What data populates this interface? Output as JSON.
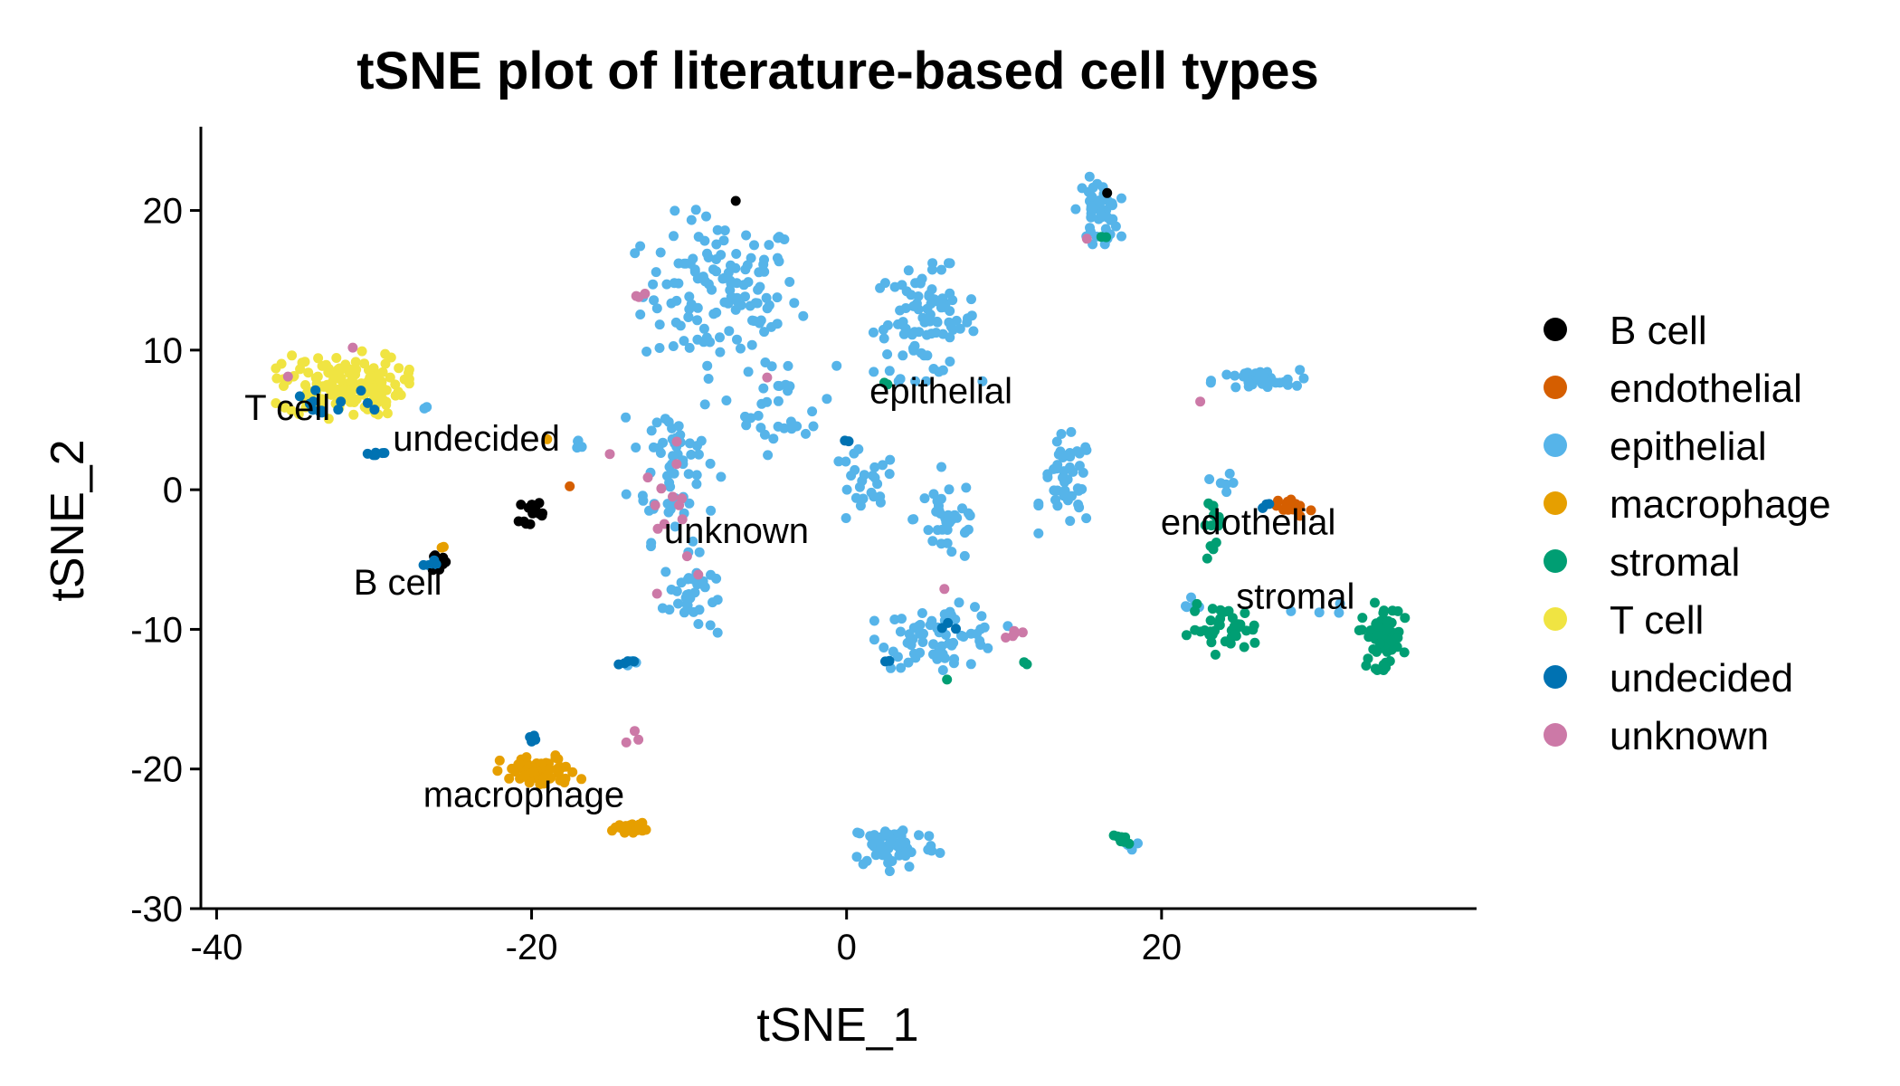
{
  "chart_data": {
    "type": "scatter",
    "title": "tSNE plot of literature-based cell types",
    "xlabel": "tSNE_1",
    "ylabel": "tSNE_2",
    "xlim": [
      -41,
      40
    ],
    "ylim": [
      -30,
      26
    ],
    "x_ticks": [
      -40,
      -20,
      0,
      20
    ],
    "y_ticks": [
      20,
      10,
      0,
      -10,
      -20,
      -30
    ],
    "grid": false,
    "legend_position": "right",
    "legend": [
      {
        "name": "B cell",
        "color": "#000000"
      },
      {
        "name": "endothelial",
        "color": "#D55E00"
      },
      {
        "name": "epithelial",
        "color": "#56B4E9"
      },
      {
        "name": "macrophage",
        "color": "#E69F00"
      },
      {
        "name": "stromal",
        "color": "#009E73"
      },
      {
        "name": "T cell",
        "color": "#F0E442"
      },
      {
        "name": "undecided",
        "color": "#0072B2"
      },
      {
        "name": "unknown",
        "color": "#CC79A7"
      }
    ],
    "cluster_labels": [
      {
        "text": "T cell",
        "x": -35.5,
        "y": 5.0
      },
      {
        "text": "undecided",
        "x": -23.5,
        "y": 2.8
      },
      {
        "text": "B cell",
        "x": -28.5,
        "y": -7.5
      },
      {
        "text": "unknown",
        "x": -7.0,
        "y": -3.8
      },
      {
        "text": "epithelial",
        "x": 6.0,
        "y": 6.2
      },
      {
        "text": "endothelial",
        "x": 25.5,
        "y": -3.2
      },
      {
        "text": "stromal",
        "x": 28.5,
        "y": -8.5
      },
      {
        "text": "macrophage",
        "x": -20.5,
        "y": -22.7
      }
    ],
    "clusters": [
      {
        "label": "B cell",
        "center": [
          -20,
          -1.5
        ],
        "spread": [
          0.7,
          0.8
        ],
        "n": 16
      },
      {
        "label": "B cell",
        "center": [
          -26,
          -5.3
        ],
        "spread": [
          0.6,
          0.5
        ],
        "n": 14
      },
      {
        "label": "B cell",
        "center": [
          -7,
          20.7
        ],
        "spread": [
          0.1,
          0.1
        ],
        "n": 1
      },
      {
        "label": "B cell",
        "center": [
          16.5,
          21.3
        ],
        "spread": [
          0.1,
          0.1
        ],
        "n": 1
      },
      {
        "label": "endothelial",
        "center": [
          28.5,
          -1.2
        ],
        "spread": [
          1.0,
          0.6
        ],
        "n": 16
      },
      {
        "label": "endothelial",
        "center": [
          -17.7,
          0.3
        ],
        "spread": [
          0.1,
          0.1
        ],
        "n": 1
      },
      {
        "label": "T cell",
        "center": [
          -32,
          7.5
        ],
        "spread": [
          3.5,
          2.0
        ],
        "n": 150
      },
      {
        "label": "undecided",
        "center": [
          -33,
          6.0
        ],
        "spread": [
          2.5,
          1.5
        ],
        "n": 14
      },
      {
        "label": "undecided",
        "center": [
          -30,
          2.6
        ],
        "spread": [
          0.8,
          0.1
        ],
        "n": 6
      },
      {
        "label": "undecided",
        "center": [
          -26.5,
          -5.3
        ],
        "spread": [
          0.5,
          0.3
        ],
        "n": 4
      },
      {
        "label": "undecided",
        "center": [
          -20,
          -17.8
        ],
        "spread": [
          0.4,
          0.3
        ],
        "n": 4
      },
      {
        "label": "undecided",
        "center": [
          -14,
          -12.4
        ],
        "spread": [
          0.8,
          0.2
        ],
        "n": 4
      },
      {
        "label": "undecided",
        "center": [
          6.5,
          -9.5
        ],
        "spread": [
          0.4,
          0.6
        ],
        "n": 3
      },
      {
        "label": "undecided",
        "center": [
          2.5,
          -12.3
        ],
        "spread": [
          0.2,
          0.2
        ],
        "n": 2
      },
      {
        "label": "undecided",
        "center": [
          26.5,
          -1.2
        ],
        "spread": [
          0.4,
          0.3
        ],
        "n": 3
      },
      {
        "label": "undecided",
        "center": [
          0,
          3.5
        ],
        "spread": [
          0.2,
          0.2
        ],
        "n": 2
      },
      {
        "label": "macrophage",
        "center": [
          -19.5,
          -20.2
        ],
        "spread": [
          2.2,
          1.0
        ],
        "n": 75
      },
      {
        "label": "macrophage",
        "center": [
          -13.8,
          -24.2
        ],
        "spread": [
          0.9,
          0.3
        ],
        "n": 22
      },
      {
        "label": "macrophage",
        "center": [
          -25.7,
          -4.2
        ],
        "spread": [
          0.2,
          0.2
        ],
        "n": 2
      },
      {
        "label": "macrophage",
        "center": [
          -19,
          3.7
        ],
        "spread": [
          0.1,
          0.1
        ],
        "n": 1
      },
      {
        "label": "stromal",
        "center": [
          34,
          -10.5
        ],
        "spread": [
          1.2,
          2.0
        ],
        "n": 60
      },
      {
        "label": "stromal",
        "center": [
          24,
          -10.0
        ],
        "spread": [
          2.0,
          1.5
        ],
        "n": 38
      },
      {
        "label": "stromal",
        "center": [
          23.5,
          -2.5
        ],
        "spread": [
          0.8,
          2.0
        ],
        "n": 14
      },
      {
        "label": "stromal",
        "center": [
          17.5,
          -25.1
        ],
        "spread": [
          0.7,
          0.3
        ],
        "n": 8
      },
      {
        "label": "stromal",
        "center": [
          11.5,
          -12.5
        ],
        "spread": [
          0.3,
          0.2
        ],
        "n": 2
      },
      {
        "label": "stromal",
        "center": [
          2.5,
          7.5
        ],
        "spread": [
          0.2,
          0.2
        ],
        "n": 2
      },
      {
        "label": "stromal",
        "center": [
          16.5,
          18.0
        ],
        "spread": [
          0.4,
          0.3
        ],
        "n": 2
      },
      {
        "label": "stromal",
        "center": [
          6.5,
          -13.5
        ],
        "spread": [
          0.1,
          0.1
        ],
        "n": 1
      },
      {
        "label": "unknown",
        "center": [
          -10.5,
          -2.0
        ],
        "spread": [
          2.2,
          4.5
        ],
        "n": 14
      },
      {
        "label": "unknown",
        "center": [
          10.3,
          -10.2
        ],
        "spread": [
          0.8,
          0.6
        ],
        "n": 5
      },
      {
        "label": "unknown",
        "center": [
          -13,
          13.8
        ],
        "spread": [
          0.6,
          0.4
        ],
        "n": 3
      },
      {
        "label": "unknown",
        "center": [
          -31.5,
          10.2
        ],
        "spread": [
          0.2,
          0.2
        ],
        "n": 1
      },
      {
        "label": "unknown",
        "center": [
          -35.5,
          8.0
        ],
        "spread": [
          0.2,
          0.2
        ],
        "n": 1
      },
      {
        "label": "unknown",
        "center": [
          -15,
          2.5
        ],
        "spread": [
          0.2,
          0.2
        ],
        "n": 1
      },
      {
        "label": "unknown",
        "center": [
          -13.5,
          -17.5
        ],
        "spread": [
          0.8,
          0.5
        ],
        "n": 3
      },
      {
        "label": "unknown",
        "center": [
          22.5,
          6.2
        ],
        "spread": [
          0.2,
          0.2
        ],
        "n": 1
      },
      {
        "label": "unknown",
        "center": [
          15.5,
          18.0
        ],
        "spread": [
          0.2,
          0.2
        ],
        "n": 1
      },
      {
        "label": "unknown",
        "center": [
          6.2,
          -7.2
        ],
        "spread": [
          0.2,
          0.2
        ],
        "n": 1
      },
      {
        "label": "unknown",
        "center": [
          -5,
          8.0
        ],
        "spread": [
          0.2,
          0.2
        ],
        "n": 1
      },
      {
        "label": "epithelial",
        "center": [
          -8,
          14.0
        ],
        "spread": [
          4.5,
          5.0
        ],
        "n": 130
      },
      {
        "label": "epithelial",
        "center": [
          -11,
          2.0
        ],
        "spread": [
          2.5,
          5.0
        ],
        "n": 60
      },
      {
        "label": "epithelial",
        "center": [
          -10,
          -7.5
        ],
        "spread": [
          1.5,
          2.5
        ],
        "n": 35
      },
      {
        "label": "epithelial",
        "center": [
          -4,
          6.0
        ],
        "spread": [
          3.0,
          3.0
        ],
        "n": 30
      },
      {
        "label": "epithelial",
        "center": [
          5,
          12.0
        ],
        "spread": [
          3.0,
          3.5
        ],
        "n": 90
      },
      {
        "label": "epithelial",
        "center": [
          6.5,
          -2.0
        ],
        "spread": [
          2.0,
          3.0
        ],
        "n": 35
      },
      {
        "label": "epithelial",
        "center": [
          1,
          0.0
        ],
        "spread": [
          2.0,
          2.5
        ],
        "n": 25
      },
      {
        "label": "epithelial",
        "center": [
          14,
          0.5
        ],
        "spread": [
          1.5,
          3.0
        ],
        "n": 45
      },
      {
        "label": "epithelial",
        "center": [
          6,
          -10.5
        ],
        "spread": [
          3.5,
          2.0
        ],
        "n": 70
      },
      {
        "label": "epithelial",
        "center": [
          16,
          20.0
        ],
        "spread": [
          1.2,
          2.0
        ],
        "n": 45
      },
      {
        "label": "epithelial",
        "center": [
          26,
          7.8
        ],
        "spread": [
          2.5,
          0.7
        ],
        "n": 35
      },
      {
        "label": "epithelial",
        "center": [
          3,
          -25.5
        ],
        "spread": [
          2.5,
          1.5
        ],
        "n": 60
      },
      {
        "label": "epithelial",
        "center": [
          18,
          -25.5
        ],
        "spread": [
          0.6,
          0.4
        ],
        "n": 6
      },
      {
        "label": "epithelial",
        "center": [
          -13,
          -24.2
        ],
        "spread": [
          0.2,
          0.1
        ],
        "n": 2
      },
      {
        "label": "epithelial",
        "center": [
          -13.5,
          -12.4
        ],
        "spread": [
          0.6,
          0.2
        ],
        "n": 4
      },
      {
        "label": "epithelial",
        "center": [
          -17,
          3.0
        ],
        "spread": [
          0.8,
          0.5
        ],
        "n": 4
      },
      {
        "label": "epithelial",
        "center": [
          -26.5,
          5.8
        ],
        "spread": [
          0.3,
          0.3
        ],
        "n": 2
      },
      {
        "label": "epithelial",
        "center": [
          24,
          0.5
        ],
        "spread": [
          0.8,
          2.0
        ],
        "n": 6
      },
      {
        "label": "epithelial",
        "center": [
          21.5,
          -8.5
        ],
        "spread": [
          1.2,
          0.8
        ],
        "n": 5
      },
      {
        "label": "epithelial",
        "center": [
          30,
          -8.5
        ],
        "spread": [
          1.5,
          0.6
        ],
        "n": 4
      }
    ]
  }
}
